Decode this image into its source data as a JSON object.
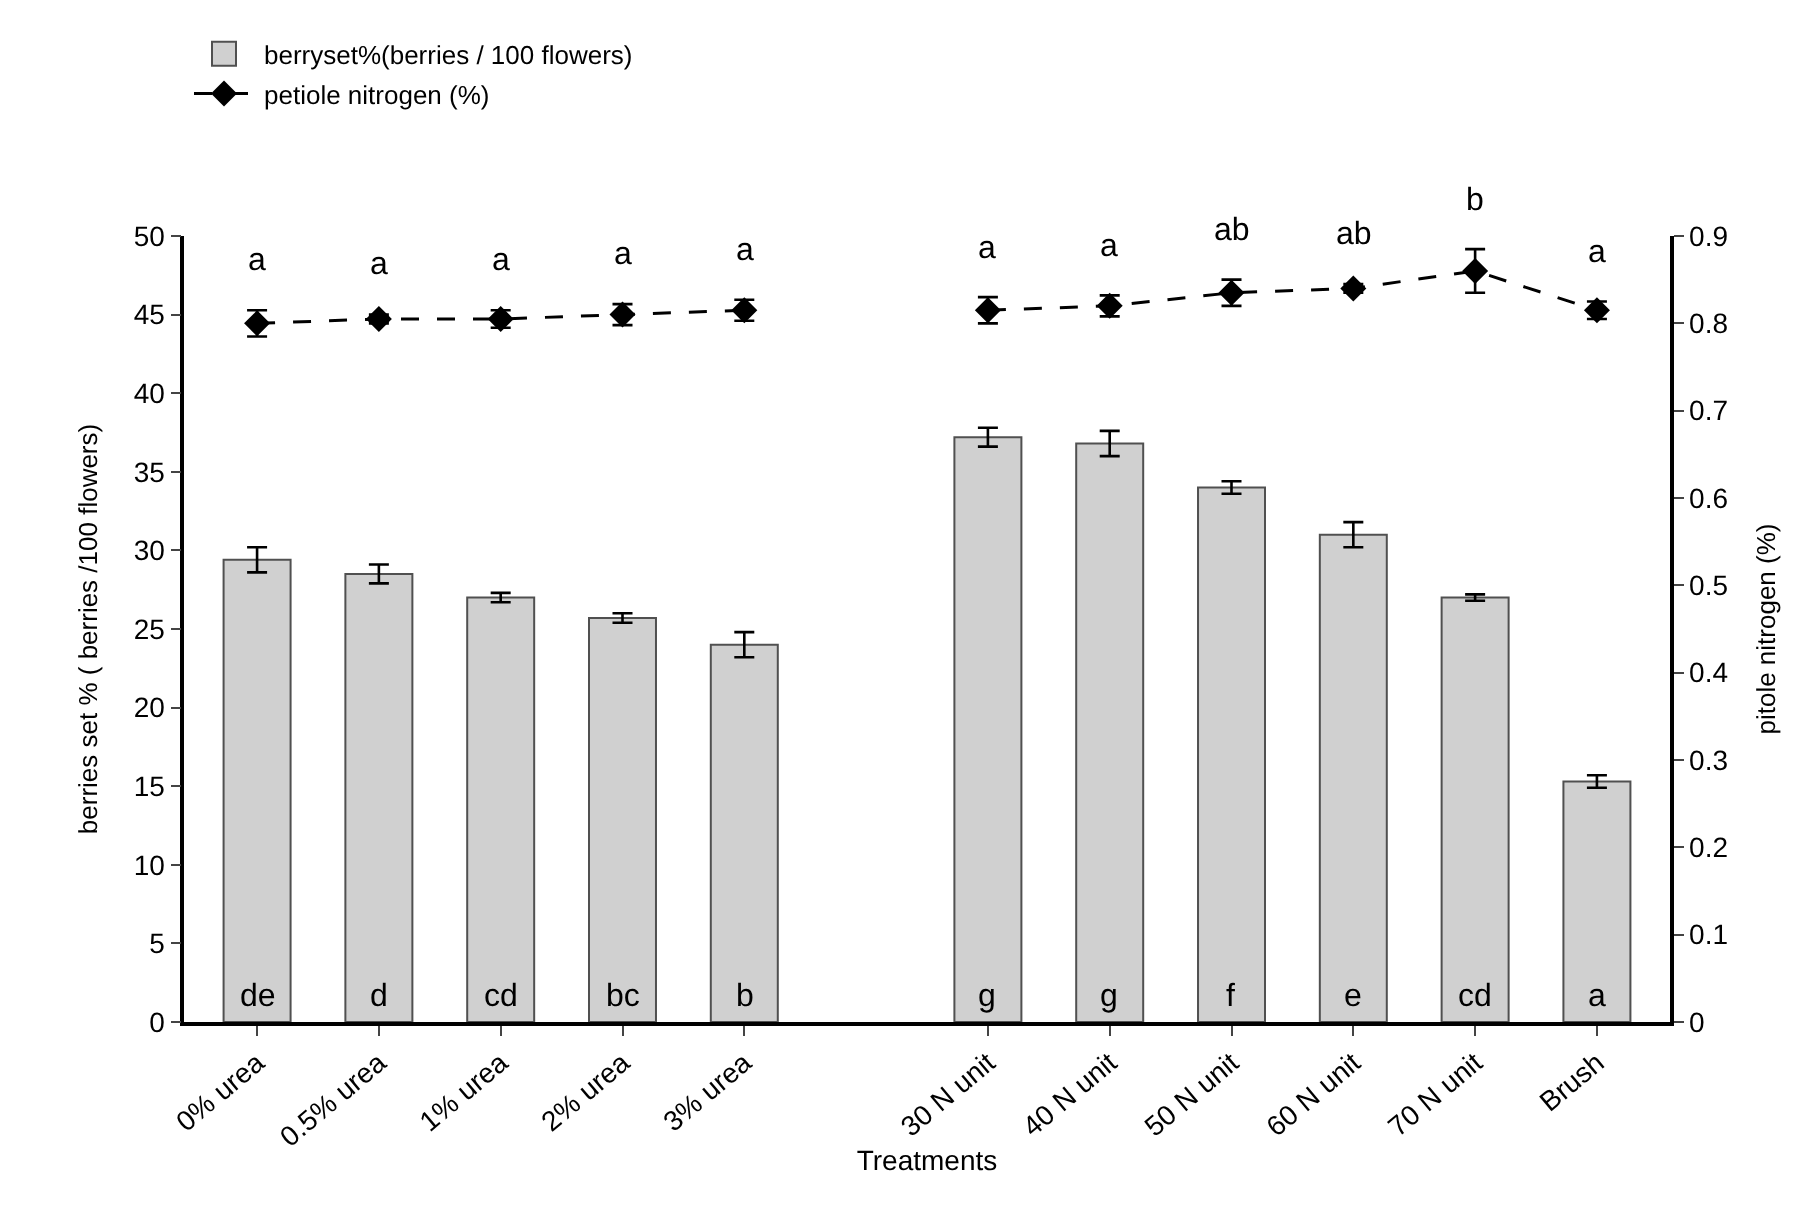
{
  "chart_data": {
    "type": "bar",
    "xlabel": "Treatments",
    "ylabel": "berries set % ( berries /100 flowers)",
    "y2label": "pitole nitrogen (%)",
    "categories": [
      "0% urea",
      "0.5% urea",
      "1% urea",
      "2% urea",
      "3% urea",
      null,
      "30 N unit",
      "40 N unit",
      "50 N unit",
      "60 N unit",
      "70 N unit",
      "Brush"
    ],
    "series": [
      {
        "name": "berryset%(berries / 100 flowers)",
        "color": "#d0d0d0",
        "values": [
          29.4,
          28.5,
          27.0,
          25.7,
          24.0,
          null,
          37.2,
          36.8,
          34.0,
          31.0,
          27.0,
          15.3
        ],
        "errors": [
          0.8,
          0.6,
          0.3,
          0.3,
          0.8,
          null,
          0.6,
          0.8,
          0.4,
          0.8,
          0.2,
          0.4
        ]
      },
      {
        "name": "petiole nitrogen (%)",
        "type": "line",
        "axis": "y2",
        "color": "#000000",
        "line_style": "dashed",
        "marker": "diamond",
        "values": [
          0.8,
          0.805,
          0.805,
          0.81,
          0.815,
          null,
          0.815,
          0.82,
          0.835,
          0.84,
          0.86,
          0.815
        ],
        "errors": [
          0.015,
          0.005,
          0.01,
          0.012,
          0.012,
          null,
          0.015,
          0.012,
          0.015,
          0.005,
          0.025,
          0.01
        ]
      }
    ],
    "ylim": [
      0,
      50
    ],
    "yticks": [
      0,
      5,
      10,
      15,
      20,
      25,
      30,
      35,
      40,
      45,
      50
    ],
    "y2lim": [
      0,
      0.9
    ],
    "y2ticks": [
      0,
      0.1,
      0.2,
      0.3,
      0.4,
      0.5,
      0.6,
      0.7,
      0.8,
      0.9
    ],
    "legend": "top left",
    "annotations": [
      "a",
      "a",
      "a",
      "a",
      "a",
      "a",
      "a",
      "ab",
      "ab",
      "b",
      "a",
      "de",
      "d",
      "cd",
      "bc",
      "b",
      "g",
      "g",
      "f",
      "e",
      "cd",
      "a"
    ]
  }
}
